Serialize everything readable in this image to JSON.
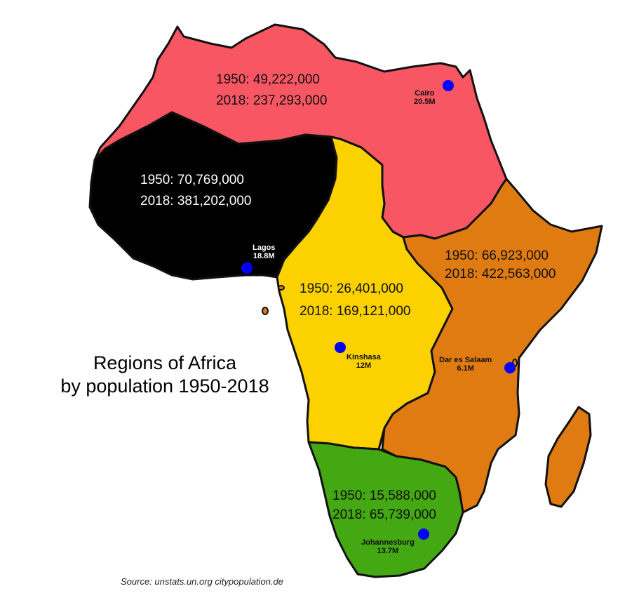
{
  "title": {
    "line1": "Regions of Africa",
    "line2": "by population 1950-2018"
  },
  "source": "Source: unstats.un.org citypopulation.de",
  "colors": {
    "northern": "#f75662",
    "western": "#000000",
    "central": "#fcd100",
    "eastern": "#e07b12",
    "southern": "#43a812",
    "city_dot": "#0000ff",
    "outline": "#111111"
  },
  "regions": [
    {
      "id": "northern",
      "pop_1950": "1950: 49,222,000",
      "pop_2018": "2018: 237,293,000"
    },
    {
      "id": "western",
      "pop_1950": "1950: 70,769,000",
      "pop_2018": "2018: 381,202,000"
    },
    {
      "id": "central",
      "pop_1950": "1950: 26,401,000",
      "pop_2018": "2018: 169,121,000"
    },
    {
      "id": "eastern",
      "pop_1950": "1950: 66,923,000",
      "pop_2018": "2018: 422,563,000"
    },
    {
      "id": "southern",
      "pop_1950": "1950: 15,588,000",
      "pop_2018": "2018: 65,739,000"
    }
  ],
  "cities": [
    {
      "id": "cairo",
      "name": "Cairo",
      "pop": "20.5M"
    },
    {
      "id": "lagos",
      "name": "Lagos",
      "pop": "18.8M"
    },
    {
      "id": "kinshasa",
      "name": "Kinshasa",
      "pop": "12M"
    },
    {
      "id": "dar",
      "name": "Dar es Salaam",
      "pop": "6.1M"
    },
    {
      "id": "johannesburg",
      "name": "Johannesburg",
      "pop": "13.7M"
    }
  ]
}
